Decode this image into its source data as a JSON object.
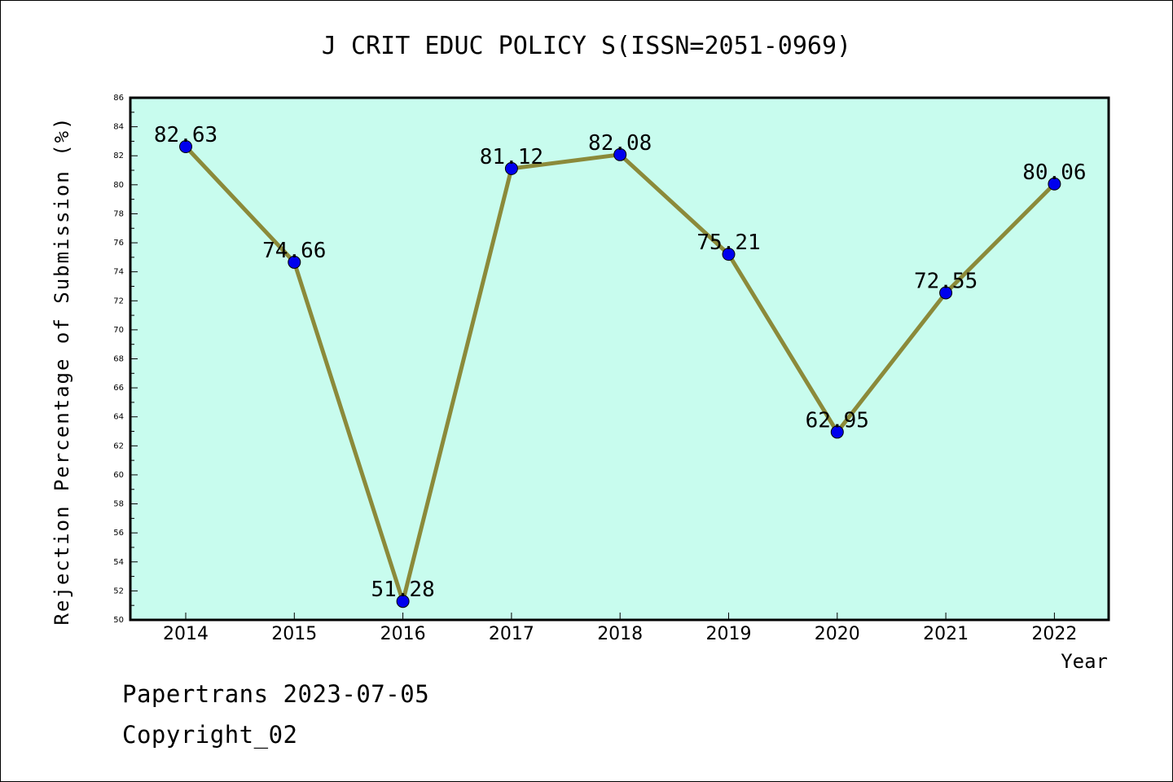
{
  "chart_data": {
    "type": "line",
    "title": "J CRIT EDUC POLICY S(ISSN=2051-0969)",
    "xlabel": "Year",
    "ylabel": "Rejection Percentage of Submission (%)",
    "categories": [
      "2014",
      "2015",
      "2016",
      "2017",
      "2018",
      "2019",
      "2020",
      "2021",
      "2022"
    ],
    "values": [
      82.63,
      74.66,
      51.28,
      81.12,
      82.08,
      75.21,
      62.95,
      72.55,
      80.06
    ],
    "data_labels": [
      "82.63",
      "74.66",
      "51.28",
      "81.12",
      "82.08",
      "75.21",
      "62.95",
      "72.55",
      "80.06"
    ],
    "ylim": [
      50,
      86
    ],
    "yticks": [
      "50",
      "52",
      "54",
      "56",
      "58",
      "60",
      "62",
      "64",
      "66",
      "68",
      "70",
      "72",
      "74",
      "76",
      "78",
      "80",
      "82",
      "84",
      "86"
    ],
    "grid": false,
    "colors": {
      "plot_background": "#c8fcee",
      "line": "#8b8a3a",
      "marker": "#0000ee",
      "axis": "#000000"
    }
  },
  "footer": {
    "line1": "Papertrans 2023-07-05",
    "line2": "Copyright_02"
  }
}
